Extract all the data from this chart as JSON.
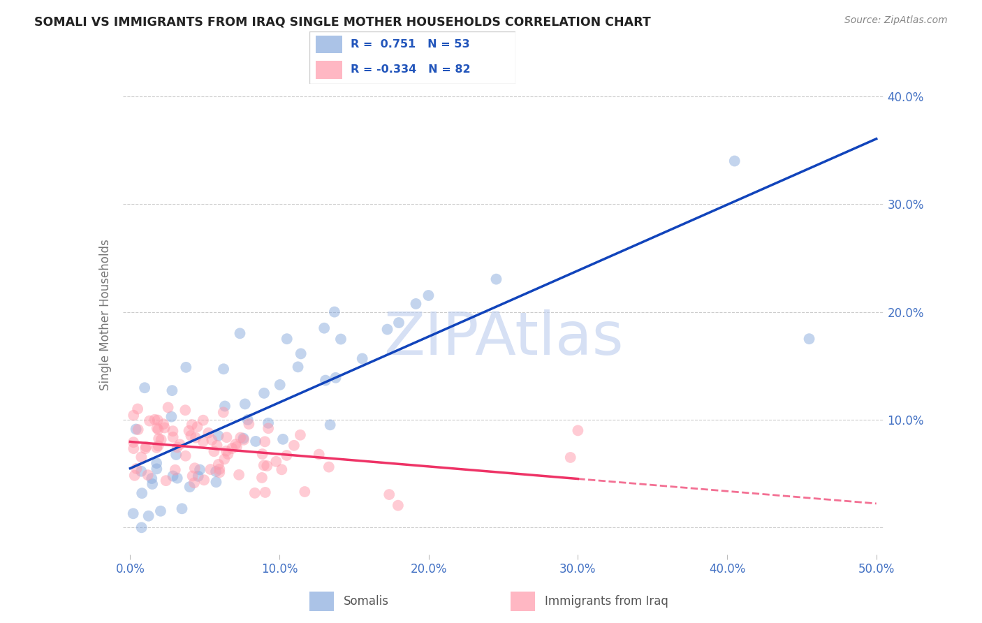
{
  "title": "SOMALI VS IMMIGRANTS FROM IRAQ SINGLE MOTHER HOUSEHOLDS CORRELATION CHART",
  "source": "Source: ZipAtlas.com",
  "axis_color": "#4472C4",
  "ylabel": "Single Mother Households",
  "blue_R": 0.751,
  "blue_N": 53,
  "pink_R": -0.334,
  "pink_N": 82,
  "blue_color": "#88AADD",
  "pink_color": "#FF99AA",
  "blue_line_color": "#1144BB",
  "pink_line_color": "#EE3366",
  "watermark": "ZIPAtlas",
  "watermark_color": "#BBCCEE",
  "title_color": "#222222",
  "source_color": "#888888",
  "legend_label_color": "#2255BB",
  "xtick_labels": [
    "0.0%",
    "10.0%",
    "20.0%",
    "30.0%",
    "40.0%",
    "50.0%"
  ],
  "ytick_labels": [
    "",
    "10.0%",
    "20.0%",
    "30.0%",
    "40.0%"
  ]
}
